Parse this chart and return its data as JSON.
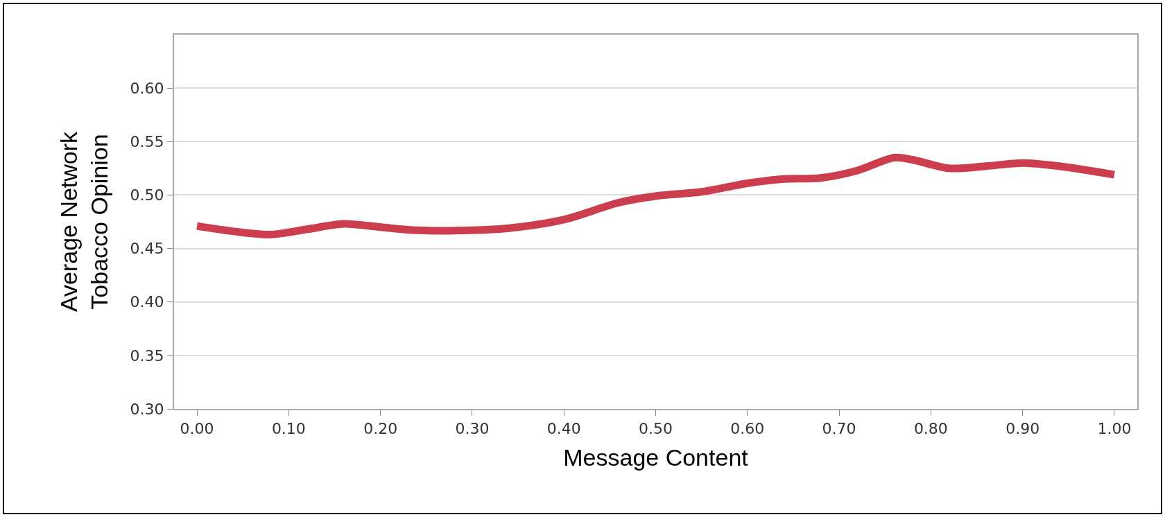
{
  "chart_data": {
    "type": "line",
    "xlabel": "Message Content",
    "ylabel": "Average Network\nTobacco Opinion",
    "x": [
      0,
      0.04,
      0.08,
      0.12,
      0.16,
      0.2,
      0.24,
      0.3,
      0.34,
      0.4,
      0.46,
      0.5,
      0.55,
      0.6,
      0.64,
      0.68,
      0.72,
      0.76,
      0.78,
      0.82,
      0.86,
      0.9,
      0.94,
      1.0
    ],
    "series": [
      {
        "color": "#cc3e4e",
        "values": [
          0.471,
          0.466,
          0.463,
          0.468,
          0.473,
          0.47,
          0.467,
          0.467,
          0.469,
          0.477,
          0.493,
          0.499,
          0.503,
          0.511,
          0.515,
          0.516,
          0.523,
          0.535,
          0.533,
          0.525,
          0.527,
          0.53,
          0.527,
          0.519
        ]
      }
    ],
    "xlim": [
      -0.025,
      1.025
    ],
    "xticks": [
      {
        "value": 0,
        "label": "0.00"
      },
      {
        "value": 0.1,
        "label": "0.10"
      },
      {
        "value": 0.2,
        "label": "0.20"
      },
      {
        "value": 0.3,
        "label": "0.30"
      },
      {
        "value": 0.4,
        "label": "0.40"
      },
      {
        "value": 0.5,
        "label": "0.50"
      },
      {
        "value": 0.6,
        "label": "0.60"
      },
      {
        "value": 0.7,
        "label": "0.70"
      },
      {
        "value": 0.8,
        "label": "0.80"
      },
      {
        "value": 0.9,
        "label": "0.90"
      },
      {
        "value": 1,
        "label": "1.00"
      }
    ],
    "ylim": [
      0.3,
      0.65
    ],
    "yticks": [
      {
        "value": 0.3,
        "label": "0.30"
      },
      {
        "value": 0.35,
        "label": "0.35"
      },
      {
        "value": 0.4,
        "label": "0.40"
      },
      {
        "value": 0.45,
        "label": "0.45"
      },
      {
        "value": 0.5,
        "label": "0.50"
      },
      {
        "value": 0.55,
        "label": "0.55"
      },
      {
        "value": 0.6,
        "label": "0.60"
      }
    ],
    "grid": "y",
    "marker": "none",
    "line_style": "solid"
  }
}
